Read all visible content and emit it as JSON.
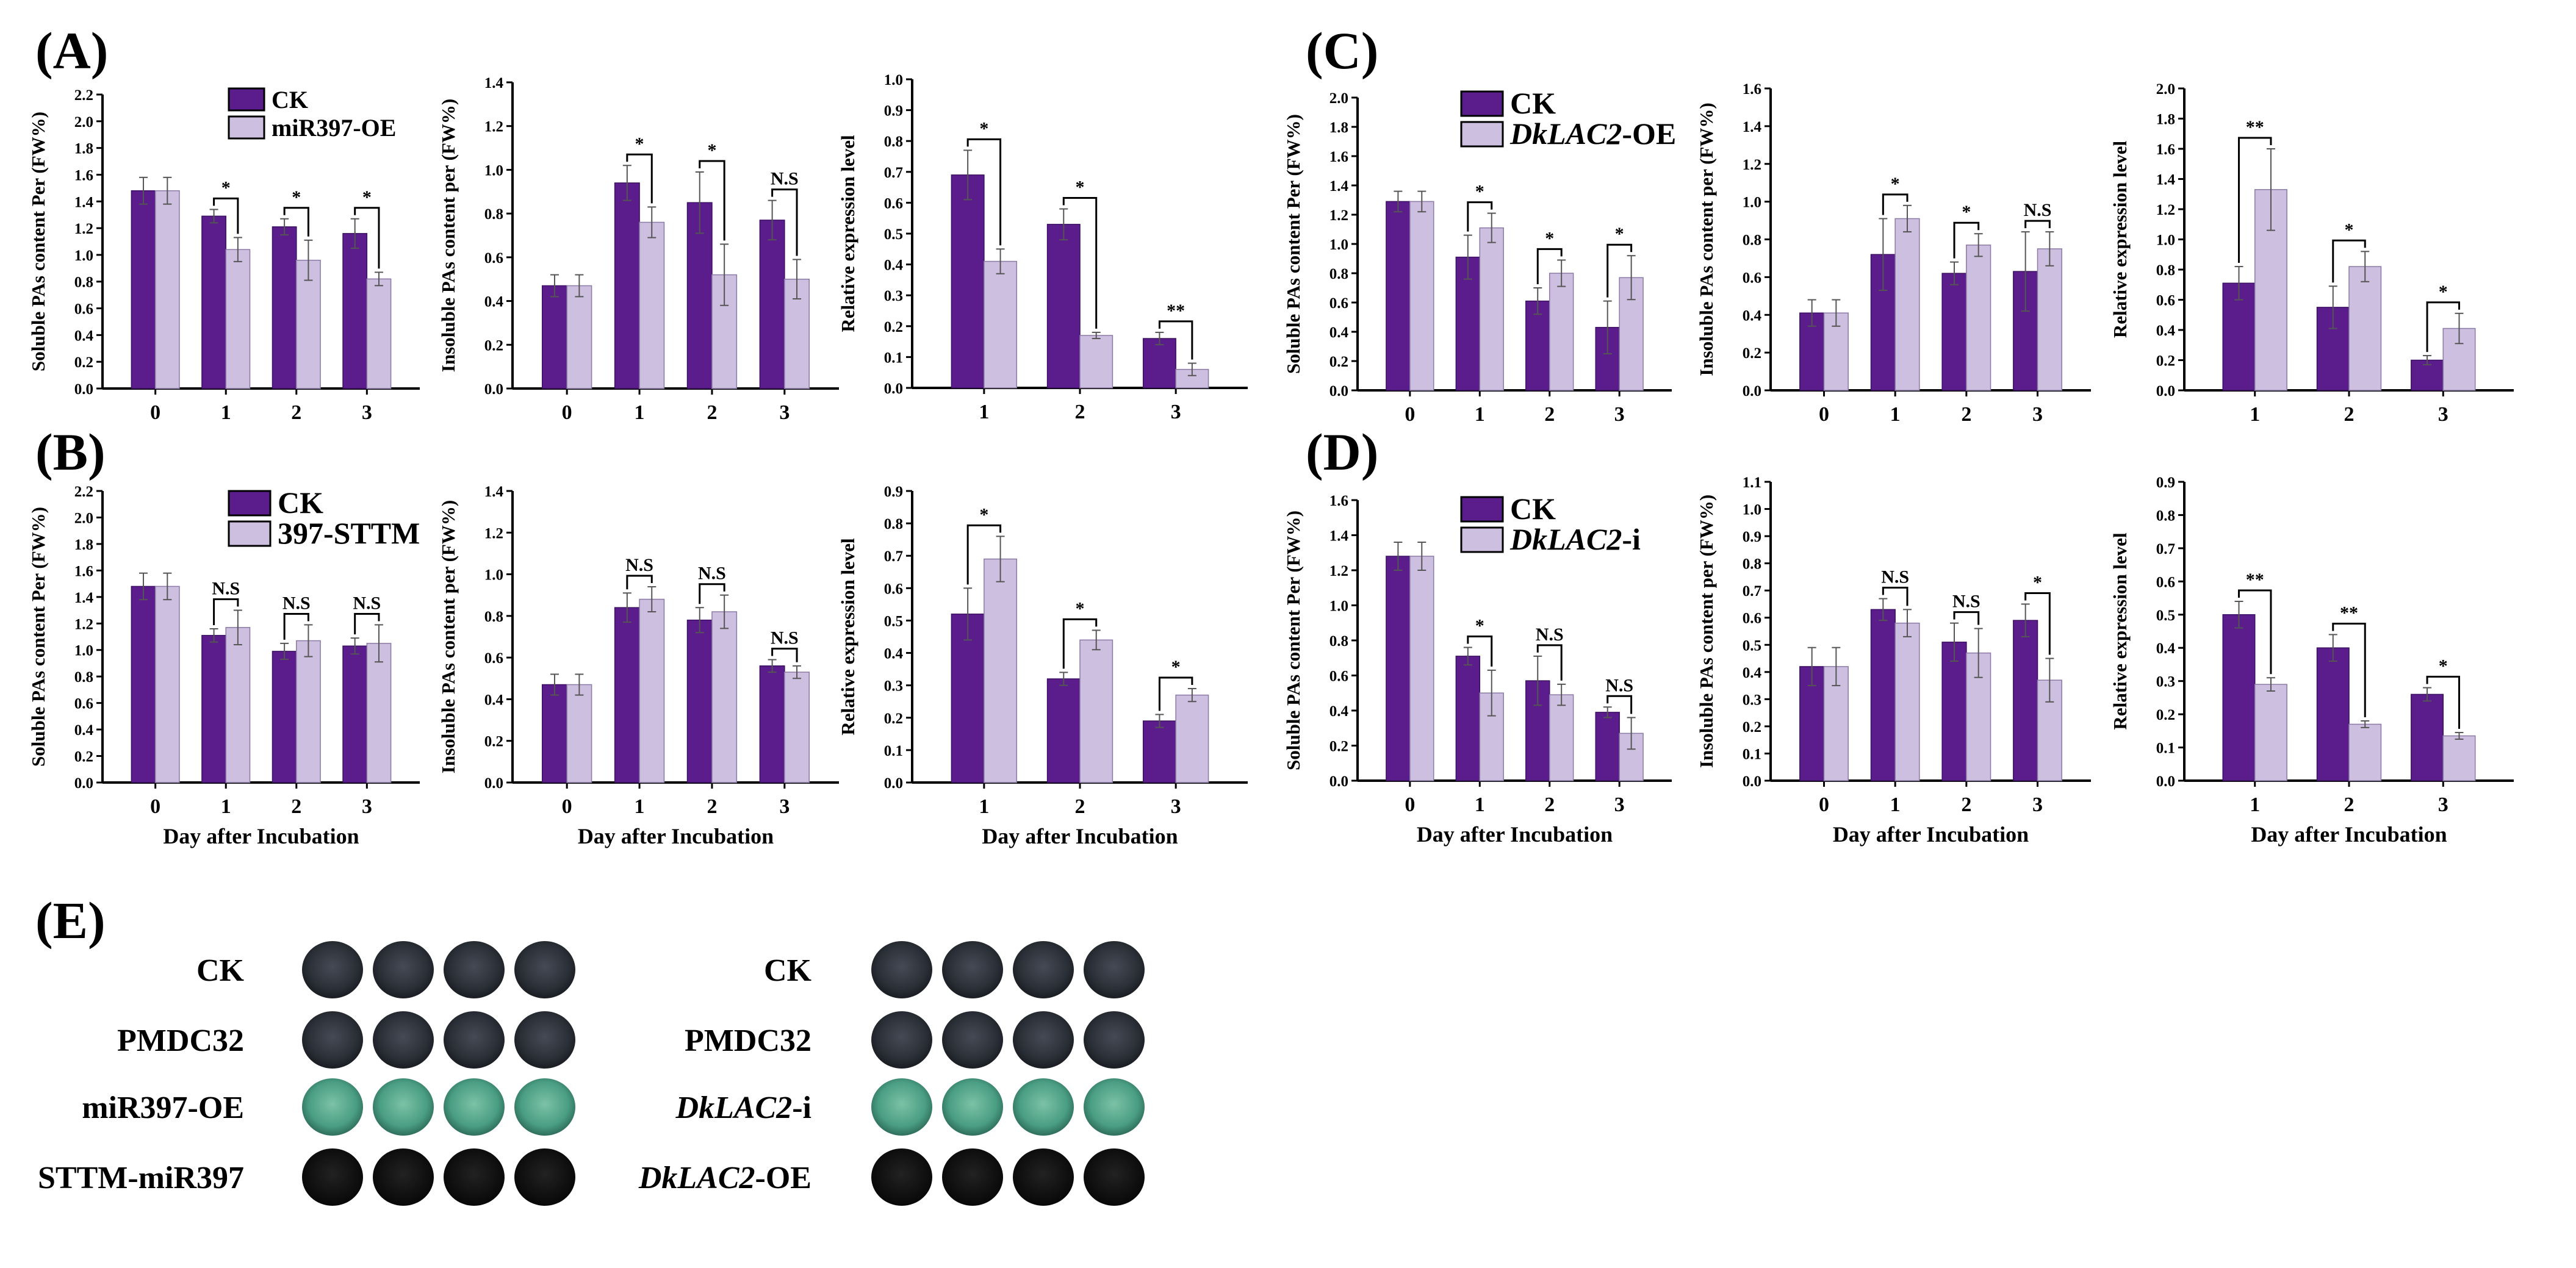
{
  "colors": {
    "ck": "#5b1d8c",
    "treat": "#cdbfdf",
    "stain_dark": "#2b2f36",
    "stain_black": "#0f0f0f",
    "stain_green": "#4fa488"
  },
  "panel_labels": [
    "(A)",
    "(B)",
    "(C)",
    "(D)",
    "(E)"
  ],
  "x_axis_label": "Day after Incubation",
  "chart_data": [
    {
      "id": "A1",
      "type": "bar",
      "panel": "A",
      "ylabel": "Soluble PAs content Per (FW%)",
      "ylim": [
        0,
        2.2
      ],
      "yticks": [
        0,
        0.2,
        0.4,
        0.6,
        0.8,
        1.0,
        1.2,
        1.4,
        1.6,
        1.8,
        2.0,
        2.2
      ],
      "categories": [
        "0",
        "1",
        "2",
        "3"
      ],
      "legend": [
        {
          "text": "CK"
        },
        {
          "text": "miR397-OE"
        }
      ],
      "series": [
        {
          "name": "CK",
          "values": [
            1.48,
            1.29,
            1.21,
            1.16
          ],
          "errors": [
            0.1,
            0.05,
            0.06,
            0.11
          ]
        },
        {
          "name": "miR397-OE",
          "values": [
            1.48,
            1.04,
            0.96,
            0.82
          ],
          "errors": [
            0.1,
            0.09,
            0.15,
            0.05
          ]
        }
      ],
      "significance": [
        "",
        "*",
        "*",
        "*"
      ],
      "show_xlabel": false
    },
    {
      "id": "A2",
      "type": "bar",
      "panel": "A",
      "ylabel": "Insoluble PAs content per (FW%)",
      "ylim": [
        0,
        1.4
      ],
      "yticks": [
        0,
        0.2,
        0.4,
        0.6,
        0.8,
        1.0,
        1.2,
        1.4
      ],
      "categories": [
        "0",
        "1",
        "2",
        "3"
      ],
      "series": [
        {
          "name": "CK",
          "values": [
            0.47,
            0.94,
            0.85,
            0.77
          ],
          "errors": [
            0.05,
            0.08,
            0.14,
            0.09
          ]
        },
        {
          "name": "miR397-OE",
          "values": [
            0.47,
            0.76,
            0.52,
            0.5
          ],
          "errors": [
            0.05,
            0.07,
            0.14,
            0.09
          ]
        }
      ],
      "significance": [
        "",
        "*",
        "*",
        "N.S"
      ],
      "show_xlabel": false
    },
    {
      "id": "A3",
      "type": "bar",
      "panel": "A",
      "ylabel": "Relative expression level",
      "ylim": [
        0,
        1.0
      ],
      "yticks": [
        0,
        0.1,
        0.2,
        0.3,
        0.4,
        0.5,
        0.6,
        0.7,
        0.8,
        0.9,
        1.0
      ],
      "categories": [
        "1",
        "2",
        "3"
      ],
      "series": [
        {
          "name": "CK",
          "values": [
            0.69,
            0.53,
            0.16
          ],
          "errors": [
            0.08,
            0.05,
            0.02
          ]
        },
        {
          "name": "miR397-OE",
          "values": [
            0.41,
            0.17,
            0.06
          ],
          "errors": [
            0.04,
            0.01,
            0.02
          ]
        }
      ],
      "significance": [
        "*",
        "*",
        "**"
      ],
      "show_xlabel": false
    },
    {
      "id": "B1",
      "type": "bar",
      "panel": "B",
      "ylabel": "Soluble PAs content Per (FW%)",
      "ylim": [
        0,
        2.2
      ],
      "yticks": [
        0,
        0.2,
        0.4,
        0.6,
        0.8,
        1.0,
        1.2,
        1.4,
        1.6,
        1.8,
        2.0,
        2.2
      ],
      "categories": [
        "0",
        "1",
        "2",
        "3"
      ],
      "legend": [
        {
          "text": "CK"
        },
        {
          "text": "397-STTM"
        }
      ],
      "series": [
        {
          "name": "CK",
          "values": [
            1.48,
            1.11,
            0.99,
            1.03
          ],
          "errors": [
            0.1,
            0.05,
            0.06,
            0.06
          ]
        },
        {
          "name": "397-STTM",
          "values": [
            1.48,
            1.17,
            1.07,
            1.05
          ],
          "errors": [
            0.1,
            0.13,
            0.12,
            0.14
          ]
        }
      ],
      "significance": [
        "",
        "N.S",
        "N.S",
        "N.S"
      ],
      "show_xlabel": true
    },
    {
      "id": "B2",
      "type": "bar",
      "panel": "B",
      "ylabel": "Insoluble PAs content per (FW%)",
      "ylim": [
        0,
        1.4
      ],
      "yticks": [
        0,
        0.2,
        0.4,
        0.6,
        0.8,
        1.0,
        1.2,
        1.4
      ],
      "categories": [
        "0",
        "1",
        "2",
        "3"
      ],
      "series": [
        {
          "name": "CK",
          "values": [
            0.47,
            0.84,
            0.78,
            0.56
          ],
          "errors": [
            0.05,
            0.07,
            0.06,
            0.03
          ]
        },
        {
          "name": "397-STTM",
          "values": [
            0.47,
            0.88,
            0.82,
            0.53
          ],
          "errors": [
            0.05,
            0.06,
            0.08,
            0.03
          ]
        }
      ],
      "significance": [
        "",
        "N.S",
        "N.S",
        "N.S"
      ],
      "show_xlabel": true
    },
    {
      "id": "B3",
      "type": "bar",
      "panel": "B",
      "ylabel": "Relative expression level",
      "ylim": [
        0,
        0.9
      ],
      "yticks": [
        0,
        0.1,
        0.2,
        0.3,
        0.4,
        0.5,
        0.6,
        0.7,
        0.8,
        0.9
      ],
      "categories": [
        "1",
        "2",
        "3"
      ],
      "series": [
        {
          "name": "CK",
          "values": [
            0.52,
            0.32,
            0.19
          ],
          "errors": [
            0.08,
            0.02,
            0.02
          ]
        },
        {
          "name": "397-STTM",
          "values": [
            0.69,
            0.44,
            0.27
          ],
          "errors": [
            0.07,
            0.03,
            0.02
          ]
        }
      ],
      "significance": [
        "*",
        "*",
        "*"
      ],
      "show_xlabel": true
    },
    {
      "id": "C1",
      "type": "bar",
      "panel": "C",
      "ylabel": "Soluble PAs content Per (FW%)",
      "ylim": [
        0,
        2.0
      ],
      "yticks": [
        0,
        0.2,
        0.4,
        0.6,
        0.8,
        1.0,
        1.2,
        1.4,
        1.6,
        1.8,
        2.0
      ],
      "categories": [
        "0",
        "1",
        "2",
        "3"
      ],
      "legend": [
        {
          "text": "CK"
        },
        {
          "text_italic": "DkLAC2",
          "text": "-OE"
        }
      ],
      "series": [
        {
          "name": "CK",
          "values": [
            1.29,
            0.91,
            0.61,
            0.43
          ],
          "errors": [
            0.07,
            0.15,
            0.09,
            0.18
          ]
        },
        {
          "name": "DkLAC2-OE",
          "values": [
            1.29,
            1.11,
            0.8,
            0.77
          ],
          "errors": [
            0.07,
            0.1,
            0.09,
            0.15
          ]
        }
      ],
      "significance": [
        "",
        "*",
        "*",
        "*"
      ],
      "show_xlabel": false
    },
    {
      "id": "C2",
      "type": "bar",
      "panel": "C",
      "ylabel": "Insoluble PAs content per (FW%)",
      "ylim": [
        0,
        1.6
      ],
      "yticks": [
        0,
        0.2,
        0.4,
        0.6,
        0.8,
        1.0,
        1.2,
        1.4,
        1.6
      ],
      "categories": [
        "0",
        "1",
        "2",
        "3"
      ],
      "series": [
        {
          "name": "CK",
          "values": [
            0.41,
            0.72,
            0.62,
            0.63
          ],
          "errors": [
            0.07,
            0.19,
            0.06,
            0.21
          ]
        },
        {
          "name": "DkLAC2-OE",
          "values": [
            0.41,
            0.91,
            0.77,
            0.75
          ],
          "errors": [
            0.07,
            0.07,
            0.06,
            0.09
          ]
        }
      ],
      "significance": [
        "",
        "*",
        "*",
        "N.S"
      ],
      "show_xlabel": false
    },
    {
      "id": "C3",
      "type": "bar",
      "panel": "C",
      "ylabel": "Relative expression level",
      "ylim": [
        0,
        2.0
      ],
      "yticks": [
        0,
        0.2,
        0.4,
        0.6,
        0.8,
        1.0,
        1.2,
        1.4,
        1.6,
        1.8,
        2.0
      ],
      "categories": [
        "1",
        "2",
        "3"
      ],
      "series": [
        {
          "name": "CK",
          "values": [
            0.71,
            0.55,
            0.2
          ],
          "errors": [
            0.11,
            0.14,
            0.03
          ]
        },
        {
          "name": "DkLAC2-OE",
          "values": [
            1.33,
            0.82,
            0.41
          ],
          "errors": [
            0.27,
            0.1,
            0.1
          ]
        }
      ],
      "significance": [
        "**",
        "*",
        "*"
      ],
      "show_xlabel": false
    },
    {
      "id": "D1",
      "type": "bar",
      "panel": "D",
      "ylabel": "Soluble PAs content Per (FW%)",
      "ylim": [
        0,
        1.6
      ],
      "yticks": [
        0,
        0.2,
        0.4,
        0.6,
        0.8,
        1.0,
        1.2,
        1.4,
        1.6
      ],
      "categories": [
        "0",
        "1",
        "2",
        "3"
      ],
      "legend": [
        {
          "text": "CK"
        },
        {
          "text_italic": "DkLAC2",
          "text": "-i"
        }
      ],
      "series": [
        {
          "name": "CK",
          "values": [
            1.28,
            0.71,
            0.57,
            0.39
          ],
          "errors": [
            0.08,
            0.05,
            0.14,
            0.03
          ]
        },
        {
          "name": "DkLAC2-i",
          "values": [
            1.28,
            0.5,
            0.49,
            0.27
          ],
          "errors": [
            0.08,
            0.13,
            0.06,
            0.09
          ]
        }
      ],
      "significance": [
        "",
        "*",
        "N.S",
        "N.S"
      ],
      "show_xlabel": true
    },
    {
      "id": "D2",
      "type": "bar",
      "panel": "D",
      "ylabel": "Insoluble PAs content per (FW%)",
      "ylim": [
        0,
        1.1
      ],
      "yticks": [
        0,
        0.1,
        0.2,
        0.3,
        0.4,
        0.5,
        0.6,
        0.7,
        0.8,
        0.9,
        1.0,
        1.1
      ],
      "categories": [
        "0",
        "1",
        "2",
        "3"
      ],
      "series": [
        {
          "name": "CK",
          "values": [
            0.42,
            0.63,
            0.51,
            0.59
          ],
          "errors": [
            0.07,
            0.04,
            0.07,
            0.06
          ]
        },
        {
          "name": "DkLAC2-i",
          "values": [
            0.42,
            0.58,
            0.47,
            0.37
          ],
          "errors": [
            0.07,
            0.05,
            0.09,
            0.08
          ]
        }
      ],
      "significance": [
        "",
        "N.S",
        "N.S",
        "*"
      ],
      "show_xlabel": true
    },
    {
      "id": "D3",
      "type": "bar",
      "panel": "D",
      "ylabel": "Relative expression level",
      "ylim": [
        0,
        0.9
      ],
      "yticks": [
        0,
        0.1,
        0.2,
        0.3,
        0.4,
        0.5,
        0.6,
        0.7,
        0.8,
        0.9
      ],
      "categories": [
        "1",
        "2",
        "3"
      ],
      "series": [
        {
          "name": "CK",
          "values": [
            0.5,
            0.4,
            0.26
          ],
          "errors": [
            0.04,
            0.04,
            0.02
          ]
        },
        {
          "name": "DkLAC2-i",
          "values": [
            0.29,
            0.17,
            0.135
          ],
          "errors": [
            0.02,
            0.01,
            0.01
          ]
        }
      ],
      "significance": [
        "**",
        "**",
        "*"
      ],
      "show_xlabel": true
    }
  ],
  "stain_panel": {
    "groups": [
      {
        "rows": [
          {
            "label": "CK",
            "stain": "dark"
          },
          {
            "label": "PMDC32",
            "stain": "dark"
          },
          {
            "label": "miR397-OE",
            "stain": "green"
          },
          {
            "label": "STTM-miR397",
            "stain": "black"
          }
        ]
      },
      {
        "rows": [
          {
            "label": "CK",
            "stain": "dark"
          },
          {
            "label": "PMDC32",
            "stain": "dark"
          },
          {
            "label_italic": "DkLAC2",
            "label": "-i",
            "stain": "green"
          },
          {
            "label_italic": "DkLAC2",
            "label": "-OE",
            "stain": "black"
          }
        ]
      }
    ]
  }
}
